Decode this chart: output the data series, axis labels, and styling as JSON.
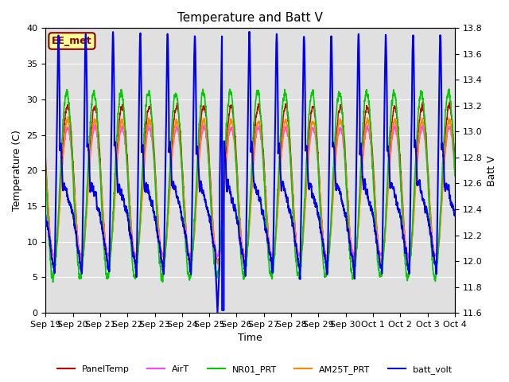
{
  "title": "Temperature and Batt V",
  "xlabel": "Time",
  "ylabel_left": "Temperature (C)",
  "ylabel_right": "Batt V",
  "annotation": "EE_met",
  "ylim_left": [
    0,
    40
  ],
  "ylim_right": [
    11.6,
    13.8
  ],
  "yticks_left": [
    0,
    5,
    10,
    15,
    20,
    25,
    30,
    35,
    40
  ],
  "yticks_right": [
    11.6,
    11.8,
    12.0,
    12.2,
    12.4,
    12.6,
    12.8,
    13.0,
    13.2,
    13.4,
    13.6,
    13.8
  ],
  "xtick_labels": [
    "Sep 19",
    "Sep 20",
    "Sep 21",
    "Sep 22",
    "Sep 23",
    "Sep 24",
    "Sep 25",
    "Sep 26",
    "Sep 27",
    "Sep 28",
    "Sep 29",
    "Sep 30",
    "Oct 1",
    "Oct 2",
    "Oct 3",
    "Oct 4"
  ],
  "colors": {
    "PanelTemp": "#cc0000",
    "AirT": "#ff44ff",
    "NR01_PRT": "#00cc00",
    "AM25T_PRT": "#ff8800",
    "batt_volt": "#0000ee"
  },
  "linewidths": {
    "PanelTemp": 1.0,
    "AirT": 1.0,
    "NR01_PRT": 1.2,
    "AM25T_PRT": 1.2,
    "batt_volt": 1.5
  },
  "bg_color": "#e0e0e0",
  "fig_bg": "#ffffff",
  "grid_color": "#ffffff",
  "title_fontsize": 11,
  "axis_fontsize": 9,
  "tick_fontsize": 8
}
